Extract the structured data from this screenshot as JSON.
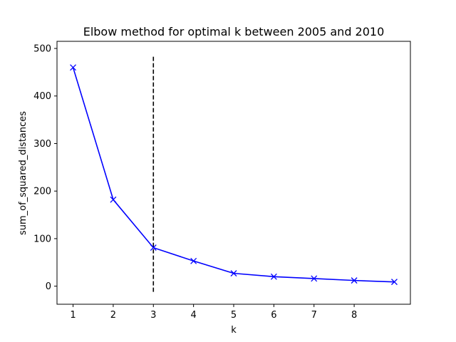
{
  "chart_data": {
    "type": "line",
    "title": "Elbow method for optimal k between 2005 and 2010",
    "xlabel": "k",
    "ylabel": "sum_of_squared_distances",
    "xlim": [
      0.6,
      9.4
    ],
    "ylim": [
      -38,
      515
    ],
    "x_ticks": [
      "1",
      "2",
      "3",
      "4",
      "5",
      "6",
      "7",
      "8"
    ],
    "y_ticks": [
      "0",
      "100",
      "200",
      "300",
      "400",
      "500"
    ],
    "grid": false,
    "legend": "none",
    "series": [
      {
        "x": [
          1,
          2,
          3,
          4,
          5,
          6,
          7,
          8,
          9
        ],
        "values": [
          460,
          182,
          81,
          53,
          27,
          20,
          16,
          12,
          9
        ],
        "color": "#0000ff",
        "marker": "x"
      }
    ],
    "vline": {
      "x": 3,
      "y_range": [
        -12,
        485
      ],
      "color": "#000000",
      "style": "dashed"
    }
  }
}
